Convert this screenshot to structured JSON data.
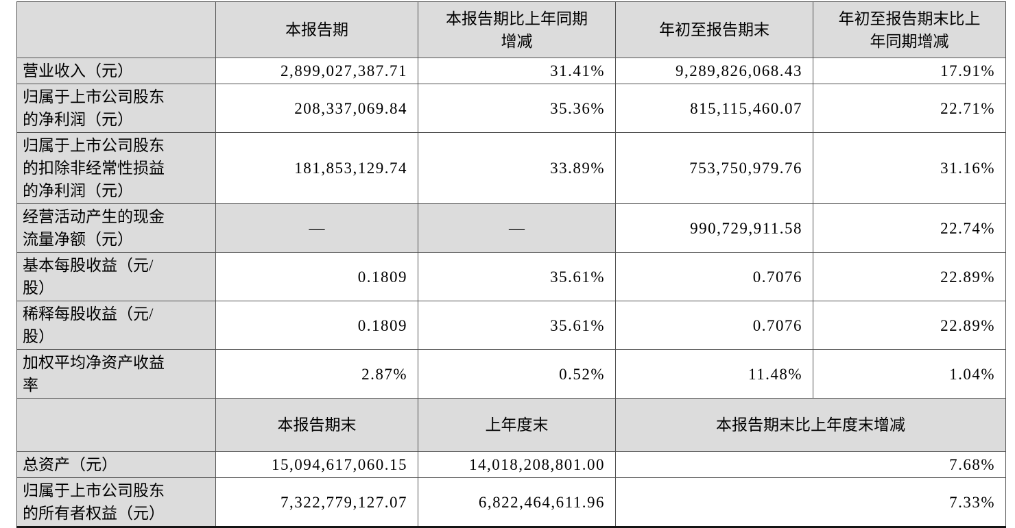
{
  "colors": {
    "header_bg": "#dcdcdc",
    "border": "#4f4f4f",
    "text": "#000000"
  },
  "section1": {
    "headers": {
      "current_period": "本报告期",
      "current_period_yoy": "本报告期比上年同期\n增减",
      "ytd": "年初至报告期末",
      "ytd_yoy": "年初至报告期末比上\n年同期增减"
    },
    "rows": [
      {
        "label": "营业收入（元）",
        "current_period": "2,899,027,387.71",
        "current_period_yoy": "31.41%",
        "ytd": "9,289,826,068.43",
        "ytd_yoy": "17.91%"
      },
      {
        "label": "归属于上市公司股东\n的净利润（元）",
        "current_period": "208,337,069.84",
        "current_period_yoy": "35.36%",
        "ytd": "815,115,460.07",
        "ytd_yoy": "22.71%"
      },
      {
        "label": "归属于上市公司股东\n的扣除非经常性损益\n的净利润（元）",
        "current_period": "181,853,129.74",
        "current_period_yoy": "33.89%",
        "ytd": "753,750,979.76",
        "ytd_yoy": "31.16%"
      },
      {
        "label": "经营活动产生的现金\n流量净额（元）",
        "current_period": "—",
        "current_period_yoy": "—",
        "ytd": "990,729,911.58",
        "ytd_yoy": "22.74%"
      },
      {
        "label": "基本每股收益（元/\n股）",
        "current_period": "0.1809",
        "current_period_yoy": "35.61%",
        "ytd": "0.7076",
        "ytd_yoy": "22.89%"
      },
      {
        "label": "稀释每股收益（元/\n股）",
        "current_period": "0.1809",
        "current_period_yoy": "35.61%",
        "ytd": "0.7076",
        "ytd_yoy": "22.89%"
      },
      {
        "label": "加权平均净资产收益\n率",
        "current_period": "2.87%",
        "current_period_yoy": "0.52%",
        "ytd": "11.48%",
        "ytd_yoy": "1.04%"
      }
    ]
  },
  "section2": {
    "headers": {
      "period_end": "本报告期末",
      "prior_year_end": "上年度末",
      "period_end_change": "本报告期末比上年度末增减"
    },
    "rows": [
      {
        "label": "总资产（元）",
        "period_end": "15,094,617,060.15",
        "prior_year_end": "14,018,208,801.00",
        "change": "7.68%"
      },
      {
        "label": "归属于上市公司股东\n的所有者权益（元）",
        "period_end": "7,322,779,127.07",
        "prior_year_end": "6,822,464,611.96",
        "change": "7.33%"
      }
    ]
  }
}
